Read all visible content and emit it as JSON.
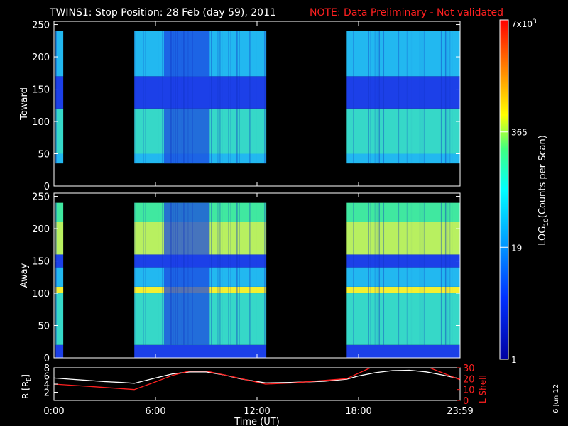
{
  "title": "TWINS1: Stop Position: 28 Feb (day  59), 2011",
  "note": "NOTE: Data Preliminary - Not validated",
  "date_stamp": "6 Jun 12",
  "colors": {
    "note": "#ff2020",
    "lshell": "#ff2020",
    "radius": "#ffffff",
    "frame": "#ffffff"
  },
  "chart_data": [
    {
      "type": "heatmap",
      "panel": "Toward",
      "ylabel": "Toward",
      "ylim": [
        0,
        255
      ],
      "y_ticks": [
        "0",
        "50",
        "100",
        "150",
        "200",
        "250"
      ],
      "xlim_hours": [
        0,
        24
      ],
      "data_intervals_hours": [
        [
          0.1,
          0.55
        ],
        [
          4.75,
          12.55
        ],
        [
          17.3,
          24
        ]
      ],
      "bands": [
        {
          "y": [
            0,
            35
          ],
          "level": "none"
        },
        {
          "y": [
            35,
            50
          ],
          "level": "cyan"
        },
        {
          "y": [
            50,
            120
          ],
          "level": "cyan-green"
        },
        {
          "y": [
            120,
            170
          ],
          "level": "blue"
        },
        {
          "y": [
            170,
            240
          ],
          "level": "cyan"
        }
      ],
      "depletion_interval_hours": [
        6.5,
        9.2
      ]
    },
    {
      "type": "heatmap",
      "panel": "Away",
      "ylabel": "Away",
      "ylim": [
        0,
        255
      ],
      "y_ticks": [
        "0",
        "50",
        "100",
        "150",
        "200",
        "250"
      ],
      "xlim_hours": [
        0,
        24
      ],
      "data_intervals_hours": [
        [
          0.1,
          0.55
        ],
        [
          4.75,
          12.55
        ],
        [
          17.3,
          24
        ]
      ],
      "bands": [
        {
          "y": [
            0,
            20
          ],
          "level": "blue"
        },
        {
          "y": [
            20,
            100
          ],
          "level": "cyan-green"
        },
        {
          "y": [
            100,
            110
          ],
          "level": "yellow"
        },
        {
          "y": [
            110,
            140
          ],
          "level": "cyan"
        },
        {
          "y": [
            140,
            160
          ],
          "level": "blue"
        },
        {
          "y": [
            160,
            210
          ],
          "level": "yellow-green"
        },
        {
          "y": [
            210,
            240
          ],
          "level": "green"
        }
      ],
      "depletion_interval_hours": [
        6.5,
        9.2
      ]
    },
    {
      "type": "line",
      "panel": "orbit",
      "ylabel_left": "R [R",
      "ylabel_left_sub": "E",
      "ylabel_left_end": "]",
      "ylabel_right": "L Shell",
      "left_ticks": [
        "2",
        "4",
        "6",
        "8"
      ],
      "left_range": [
        0,
        8
      ],
      "right_ticks": [
        "0",
        "10",
        "20",
        "30"
      ],
      "right_range": [
        0,
        30
      ],
      "series": [
        {
          "axis": "left",
          "color": "#ffffff",
          "x": [
            0,
            1,
            2,
            3,
            4,
            4.75,
            6,
            7,
            8,
            9,
            10,
            11,
            12.5,
            14,
            16,
            17.3,
            18,
            19,
            20,
            21,
            22,
            23,
            24
          ],
          "y": [
            5.5,
            5.2,
            4.9,
            4.6,
            4.4,
            4.2,
            5.5,
            6.5,
            7.0,
            7.0,
            6.3,
            5.3,
            4.3,
            4.4,
            4.7,
            5.2,
            6.0,
            6.8,
            7.3,
            7.4,
            7.0,
            6.2,
            5.3
          ]
        },
        {
          "axis": "right",
          "color": "#ff2020",
          "x": [
            0,
            2,
            4.75,
            6,
            7,
            8,
            9,
            10.5,
            12.5,
            14,
            17.3,
            18.7
          ],
          "y": [
            15,
            13,
            10,
            17,
            23,
            27,
            27,
            22,
            15,
            16,
            20,
            33
          ]
        },
        {
          "axis": "right",
          "color": "#ff2020",
          "x": [
            22.2,
            24
          ],
          "y": [
            32,
            19
          ]
        }
      ]
    },
    {
      "type": "colorbar",
      "label": "LOG",
      "label_sub": "10",
      "label_end": "(Counts per Scan)",
      "ticks": [
        {
          "label": "1",
          "frac": 0
        },
        {
          "label": "19",
          "frac": 0.33
        },
        {
          "label": "365",
          "frac": 0.67
        },
        {
          "label": "7x10",
          "sup": "3",
          "frac": 1
        }
      ]
    }
  ],
  "x_axis": {
    "label": "Time (UT)",
    "ticks": [
      {
        "label": "0:00",
        "h": 0
      },
      {
        "label": "6:00",
        "h": 6
      },
      {
        "label": "12:00",
        "h": 12
      },
      {
        "label": "18:00",
        "h": 18
      },
      {
        "label": "23:59",
        "h": 24
      }
    ]
  }
}
